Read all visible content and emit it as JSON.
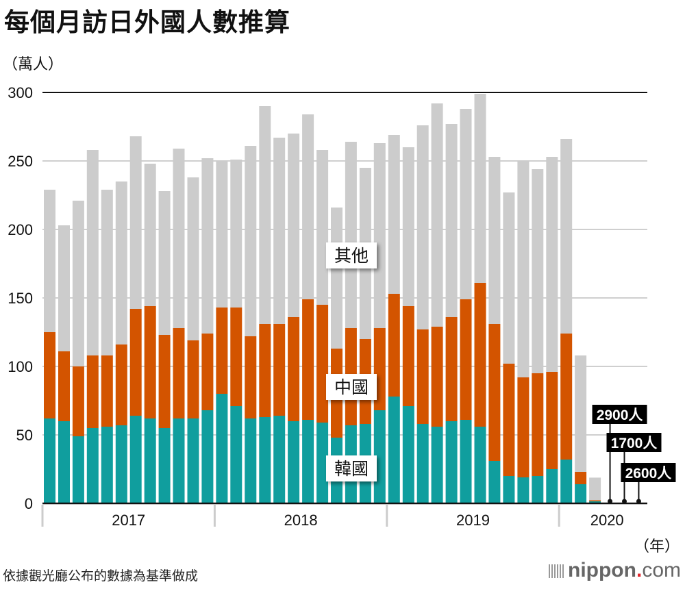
{
  "title": "每個月訪日外國人數推算",
  "unit_label": "（萬人）",
  "year_unit_label": "（年）",
  "source": "依據觀光廳公布的數據為基準做成",
  "logo": {
    "main": "nippon",
    "dot": ".",
    "suffix": "com"
  },
  "chart_data": {
    "type": "bar",
    "stacked": true,
    "title": "每個月訪日外國人數推算",
    "ylabel": "萬人",
    "xlabel": "年",
    "ylim": [
      0,
      300
    ],
    "yticks": [
      0,
      50,
      100,
      150,
      200,
      250,
      300
    ],
    "grid": true,
    "year_groups": [
      {
        "label": "2017",
        "months": 12
      },
      {
        "label": "2018",
        "months": 12
      },
      {
        "label": "2019",
        "months": 12
      },
      {
        "label": "2020",
        "months": 6
      }
    ],
    "categories": [
      "2017-01",
      "2017-02",
      "2017-03",
      "2017-04",
      "2017-05",
      "2017-06",
      "2017-07",
      "2017-08",
      "2017-09",
      "2017-10",
      "2017-11",
      "2017-12",
      "2018-01",
      "2018-02",
      "2018-03",
      "2018-04",
      "2018-05",
      "2018-06",
      "2018-07",
      "2018-08",
      "2018-09",
      "2018-10",
      "2018-11",
      "2018-12",
      "2019-01",
      "2019-02",
      "2019-03",
      "2019-04",
      "2019-05",
      "2019-06",
      "2019-07",
      "2019-08",
      "2019-09",
      "2019-10",
      "2019-11",
      "2019-12",
      "2020-01",
      "2020-02",
      "2020-03",
      "2020-04",
      "2020-05",
      "2020-06"
    ],
    "series": [
      {
        "name": "韓國",
        "color": "#109e9e",
        "values": [
          62,
          60,
          49,
          55,
          56,
          57,
          64,
          62,
          55,
          62,
          62,
          68,
          80,
          71,
          62,
          63,
          64,
          60,
          61,
          59,
          48,
          57,
          58,
          68,
          78,
          71,
          58,
          56,
          60,
          61,
          56,
          31,
          20,
          19,
          20,
          25,
          32,
          14,
          1.5,
          0,
          0,
          0
        ]
      },
      {
        "name": "中國",
        "color": "#d35400",
        "values": [
          63,
          51,
          51,
          53,
          52,
          59,
          78,
          82,
          68,
          66,
          57,
          56,
          63,
          72,
          60,
          68,
          67,
          76,
          88,
          86,
          65,
          71,
          62,
          60,
          75,
          73,
          69,
          73,
          76,
          88,
          105,
          100,
          82,
          73,
          75,
          71,
          92,
          9,
          0.8,
          0,
          0,
          0
        ]
      },
      {
        "name": "其他",
        "color": "#cccccc",
        "values": [
          104,
          92,
          121,
          150,
          121,
          119,
          126,
          104,
          105,
          131,
          119,
          128,
          107,
          108,
          139,
          159,
          136,
          134,
          135,
          113,
          103,
          136,
          125,
          135,
          116,
          116,
          149,
          163,
          141,
          139,
          138,
          122,
          125,
          158,
          149,
          157,
          142,
          85,
          16.5,
          0.29,
          0.17,
          0.26
        ]
      }
    ],
    "totals": [
      230,
      203,
      221,
      258,
      229,
      235,
      268,
      248,
      228,
      259,
      238,
      252,
      250,
      251,
      261,
      290,
      267,
      270,
      284,
      258,
      216,
      264,
      245,
      263,
      269,
      260,
      276,
      292,
      277,
      288,
      299,
      253,
      227,
      250,
      244,
      253,
      266,
      108,
      19,
      0.29,
      0.17,
      0.26
    ],
    "series_labels": [
      {
        "text": "其他",
        "series": "其他"
      },
      {
        "text": "中國",
        "series": "中國"
      },
      {
        "text": "韓國",
        "series": "韓國"
      }
    ],
    "annotations": [
      {
        "category": "2020-04",
        "text": "2900人"
      },
      {
        "category": "2020-05",
        "text": "1700人"
      },
      {
        "category": "2020-06",
        "text": "2600人"
      }
    ]
  }
}
